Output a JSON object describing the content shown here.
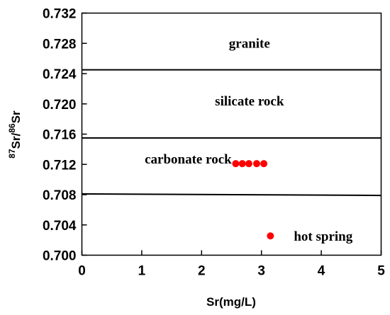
{
  "chart_data": {
    "type": "scatter",
    "xlabel": "Sr(mg/L)",
    "ylabel": {
      "sup1": "87",
      "mid": "Sr/",
      "sup2": "86",
      "end": "Sr"
    },
    "xlim": [
      0,
      5
    ],
    "ylim": [
      0.7,
      0.732
    ],
    "xticks": [
      "0",
      "1",
      "2",
      "3",
      "4",
      "5"
    ],
    "yticks": [
      "0.700",
      "0.704",
      "0.708",
      "0.712",
      "0.716",
      "0.720",
      "0.724",
      "0.728",
      "0.732"
    ],
    "boundary_lines": [
      {
        "y_start": 0.7245,
        "y_end": 0.7245
      },
      {
        "y_start": 0.7155,
        "y_end": 0.7155
      },
      {
        "y_start": 0.7081,
        "y_end": 0.7079
      }
    ],
    "regions": [
      {
        "label": "granite",
        "x": 2.8,
        "y": 0.7274
      },
      {
        "label": "silicate rock",
        "x": 2.8,
        "y": 0.7198
      },
      {
        "label": "carbonate rock",
        "x": 1.05,
        "y": 0.7121
      }
    ],
    "series": [
      {
        "name": "hot spring",
        "color": "#ff0000",
        "x": [
          2.57,
          2.68,
          2.79,
          2.92,
          3.04
        ],
        "y": [
          0.7121,
          0.7121,
          0.7121,
          0.7121,
          0.7121
        ]
      }
    ],
    "legend": {
      "position": "bottom-right",
      "text": "hot spring"
    },
    "grid": false
  }
}
